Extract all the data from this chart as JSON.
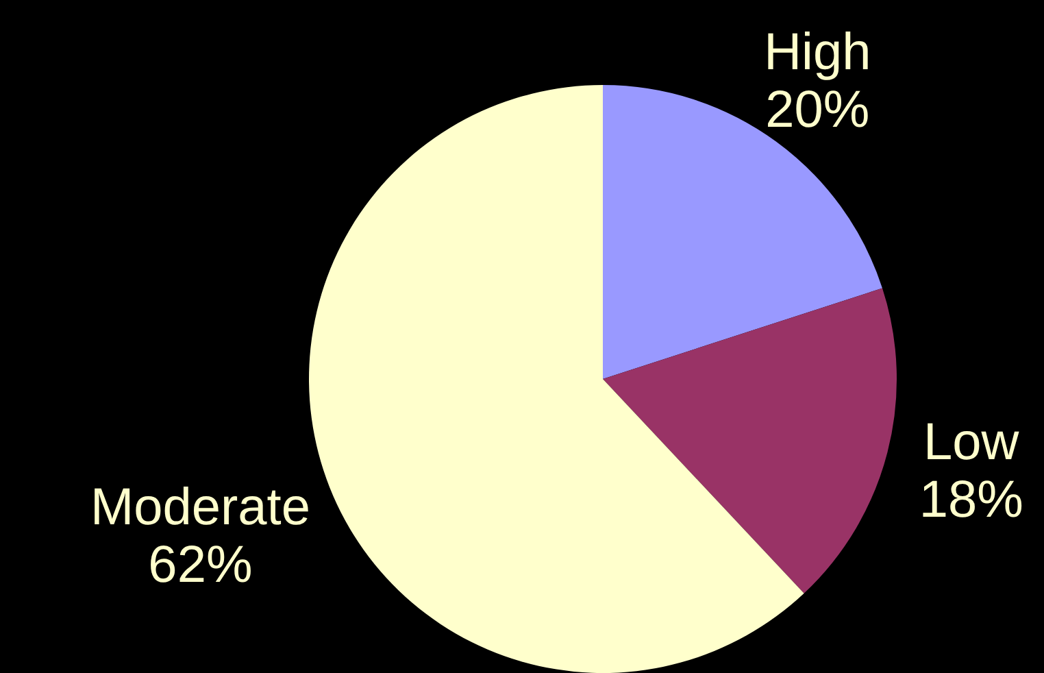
{
  "chart_data": {
    "type": "pie",
    "categories": [
      "High",
      "Low",
      "Moderate"
    ],
    "values": [
      20,
      18,
      62
    ],
    "colors": [
      "#9999ff",
      "#993366",
      "#ffffcc"
    ],
    "value_labels": [
      "20%",
      "18%",
      "62%"
    ]
  }
}
